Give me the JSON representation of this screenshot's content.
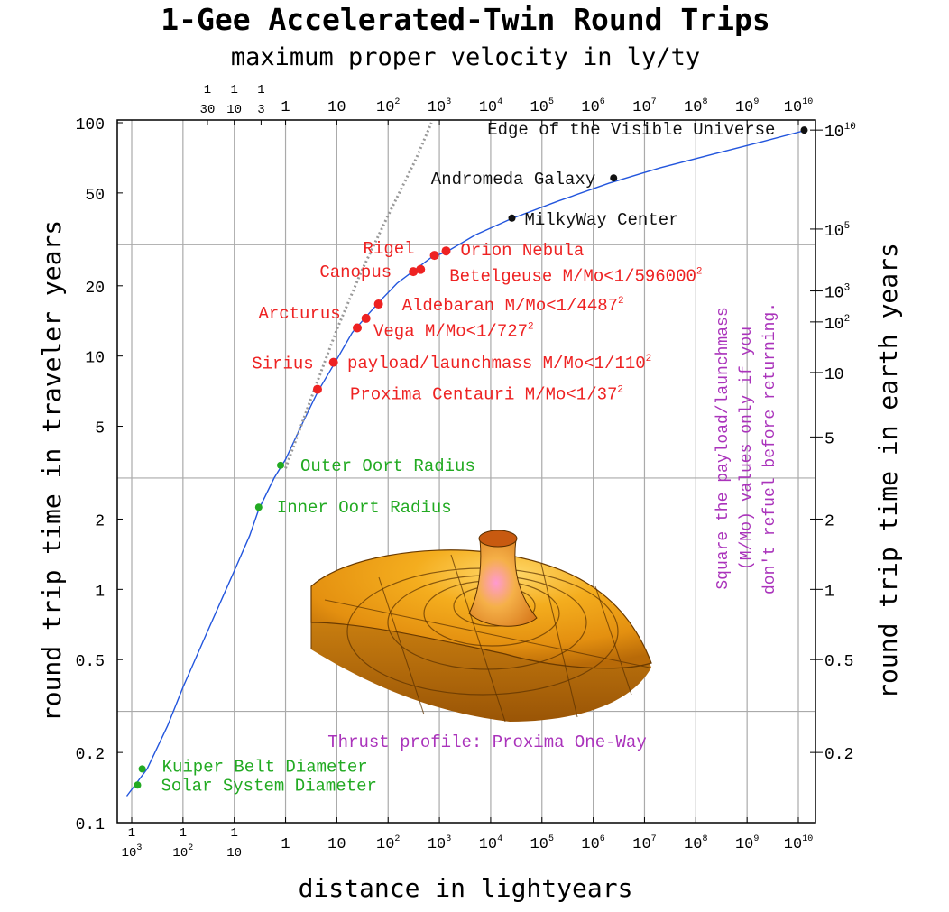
{
  "chart_data": {
    "type": "line",
    "title": "1-Gee Accelerated-Twin Round Trips",
    "subtitle": "maximum proper velocity in ly/ty",
    "xlabel": "distance in lightyears",
    "ylabel_left": "round trip time in traveler years",
    "ylabel_right": "round trip time in earth years",
    "x_scale": "log",
    "y_scale": "log",
    "xlim": [
      0.001,
      10000000000
    ],
    "ylim": [
      0.1,
      100
    ],
    "x_ticks": [
      {
        "value": 0.001,
        "num": "1",
        "den": "10",
        "sup": "3"
      },
      {
        "value": 0.01,
        "num": "1",
        "den": "10",
        "sup": "2"
      },
      {
        "value": 0.1,
        "num": "1",
        "den": "10",
        "sup": ""
      },
      {
        "value": 1,
        "base": "1",
        "sup": ""
      },
      {
        "value": 10,
        "base": "10",
        "sup": ""
      },
      {
        "value": 100,
        "base": "10",
        "sup": "2"
      },
      {
        "value": 1000,
        "base": "10",
        "sup": "3"
      },
      {
        "value": 10000,
        "base": "10",
        "sup": "4"
      },
      {
        "value": 100000,
        "base": "10",
        "sup": "5"
      },
      {
        "value": 1000000,
        "base": "10",
        "sup": "6"
      },
      {
        "value": 10000000,
        "base": "10",
        "sup": "7"
      },
      {
        "value": 100000000,
        "base": "10",
        "sup": "8"
      },
      {
        "value": 1000000000,
        "base": "10",
        "sup": "9"
      },
      {
        "value": 10000000000,
        "base": "10",
        "sup": "10"
      }
    ],
    "top_ticks": [
      {
        "value": 0.03,
        "num": "1",
        "den": "30"
      },
      {
        "value": 0.1,
        "num": "1",
        "den": "10"
      },
      {
        "value": 0.333,
        "num": "1",
        "den": "3"
      },
      {
        "value": 1,
        "base": "1",
        "sup": ""
      },
      {
        "value": 10,
        "base": "10",
        "sup": ""
      },
      {
        "value": 100,
        "base": "10",
        "sup": "2"
      },
      {
        "value": 1000,
        "base": "10",
        "sup": "3"
      },
      {
        "value": 10000,
        "base": "10",
        "sup": "4"
      },
      {
        "value": 100000,
        "base": "10",
        "sup": "5"
      },
      {
        "value": 1000000,
        "base": "10",
        "sup": "6"
      },
      {
        "value": 10000000,
        "base": "10",
        "sup": "7"
      },
      {
        "value": 100000000,
        "base": "10",
        "sup": "8"
      },
      {
        "value": 1000000000,
        "base": "10",
        "sup": "9"
      },
      {
        "value": 10000000000,
        "base": "10",
        "sup": "10"
      }
    ],
    "y_ticks_left": [
      "0.1",
      "0.2",
      "0.5",
      "1",
      "2",
      "5",
      "10",
      "20",
      "50",
      "100"
    ],
    "y_ticks_right": [
      {
        "value": 0.2,
        "base": "0.2",
        "sup": ""
      },
      {
        "value": 0.5,
        "base": "0.5",
        "sup": ""
      },
      {
        "value": 1,
        "base": "1",
        "sup": ""
      },
      {
        "value": 2,
        "base": "2",
        "sup": ""
      },
      {
        "value": 4.5,
        "base": "5",
        "sup": ""
      },
      {
        "value": 8.5,
        "base": "10",
        "sup": ""
      },
      {
        "value": 14,
        "base": "10",
        "sup": "2"
      },
      {
        "value": 19,
        "base": "10",
        "sup": "3"
      },
      {
        "value": 35,
        "base": "10",
        "sup": "5"
      },
      {
        "value": 93,
        "base": "10",
        "sup": "10"
      }
    ],
    "grid_y": [
      0.3,
      3,
      30
    ],
    "grid_x": "decades",
    "series": [
      {
        "color": "#2255dd",
        "points": [
          [
            0.0008,
            0.13
          ],
          [
            0.002,
            0.17
          ],
          [
            0.005,
            0.26
          ],
          [
            0.01,
            0.38
          ],
          [
            0.03,
            0.66
          ],
          [
            0.1,
            1.2
          ],
          [
            0.2,
            1.7
          ],
          [
            0.3,
            2.2
          ],
          [
            0.6,
            3.0
          ],
          [
            1,
            3.6
          ],
          [
            2,
            5.0
          ],
          [
            4.2,
            7.0
          ],
          [
            9,
            9.3
          ],
          [
            20,
            12.6
          ],
          [
            40,
            15.0
          ],
          [
            75,
            17.5
          ],
          [
            150,
            20.5
          ],
          [
            300,
            23.0
          ],
          [
            700,
            26.5
          ],
          [
            1400,
            28.0
          ],
          [
            5000,
            33.0
          ],
          [
            25000,
            38.7
          ],
          [
            200000,
            46.0
          ],
          [
            2000000,
            55.0
          ],
          [
            20000000,
            64.0
          ],
          [
            200000000,
            73.0
          ],
          [
            2000000000,
            83.0
          ],
          [
            13000000000,
            92.5
          ]
        ]
      },
      {
        "color": "#999999",
        "style": "dotted",
        "points": [
          [
            1,
            3.3
          ],
          [
            3,
            6.4
          ],
          [
            10,
            13.0
          ],
          [
            30,
            23.0
          ],
          [
            100,
            40.0
          ],
          [
            350,
            70.0
          ],
          [
            700,
            100.0
          ]
        ]
      }
    ],
    "points": [
      {
        "label": "Solar System Diameter",
        "x": 0.0013,
        "y": 0.145,
        "color": "#22aa22"
      },
      {
        "label": "Kuiper Belt Diameter",
        "x": 0.0016,
        "y": 0.17,
        "color": "#22aa22"
      },
      {
        "label": "Inner Oort Radius",
        "x": 0.3,
        "y": 2.25,
        "color": "#22aa22"
      },
      {
        "label": "Outer Oort Radius",
        "x": 0.8,
        "y": 3.4,
        "color": "#22aa22"
      },
      {
        "label": "Proxima Centauri M/Mo<1/37",
        "sup": "2",
        "x": 4.2,
        "y": 7.2,
        "color": "#ee2222"
      },
      {
        "label": "Sirius",
        "x": 8.6,
        "y": 9.4,
        "color": "#ee2222"
      },
      {
        "label": "Vega M/Mo<1/727",
        "sup": "2",
        "x": 25,
        "y": 13.2,
        "color": "#ee2222"
      },
      {
        "label": "Arcturus",
        "x": 37,
        "y": 14.5,
        "color": "#ee2222"
      },
      {
        "label": "Aldebaran M/Mo<1/4487",
        "sup": "2",
        "x": 65,
        "y": 16.7,
        "color": "#ee2222"
      },
      {
        "label": "Canopus",
        "x": 310,
        "y": 23.0,
        "color": "#ee2222"
      },
      {
        "label": "Betelgeuse M/Mo<1/596000",
        "sup": "2",
        "x": 430,
        "y": 23.5,
        "color": "#ee2222"
      },
      {
        "label": "Rigel",
        "x": 800,
        "y": 27.0,
        "color": "#ee2222"
      },
      {
        "label": "Orion Nebula",
        "x": 1350,
        "y": 28.2,
        "color": "#ee2222"
      },
      {
        "label": "MilkyWay Center",
        "x": 26000,
        "y": 39.0,
        "color": "#111111"
      },
      {
        "label": "Andromeda Galaxy",
        "x": 2500000,
        "y": 58.0,
        "color": "#111111"
      },
      {
        "label": "Edge of the Visible Universe",
        "x": 13000000000,
        "y": 93.0,
        "color": "#111111"
      }
    ],
    "annotations": {
      "payload": "payload/launchmass M/Mo<1/110",
      "payload_sup": "2",
      "thrust": "Thrust profile: Proxima One-Way",
      "note_lines": [
        "Square the payload/launchmass",
        "(M/Mo) values only if you",
        "don't refuel before returning."
      ]
    },
    "colors": {
      "curve": "#2255dd",
      "star": "#ee2222",
      "oort": "#22aa22",
      "galaxy": "#111111",
      "note": "#aa33bb",
      "grid": "#aaaaaa"
    }
  }
}
